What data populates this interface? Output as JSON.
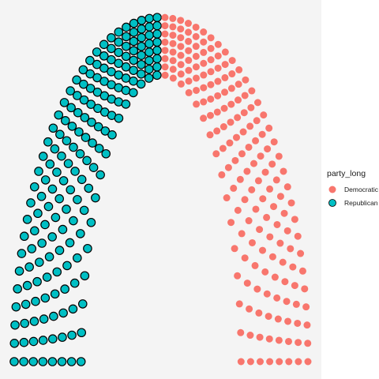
{
  "chart_data": {
    "type": "scatter",
    "subtype": "parliament-arc",
    "title": "",
    "xlabel": "",
    "ylabel": "",
    "grid": false,
    "legend": {
      "title": "party_long",
      "placement": "right",
      "entries": [
        {
          "name": "Democratic",
          "label": "Democratic",
          "color": "#F8766D",
          "outline": "none"
        },
        {
          "name": "Republican",
          "label": "Republican",
          "color": "#00BFC4",
          "outline": "#000000"
        }
      ]
    },
    "rows": 8,
    "series": [
      {
        "name": "Democratic",
        "color": "#F8766D",
        "seats_per_row": [
          30,
          28,
          26,
          24,
          22,
          20,
          18,
          16
        ]
      },
      {
        "name": "Republican",
        "color": "#00BFC4",
        "seats_per_row": [
          30,
          28,
          26,
          24,
          22,
          20,
          18,
          16
        ]
      }
    ],
    "panel_background": "#F4F4F4"
  }
}
